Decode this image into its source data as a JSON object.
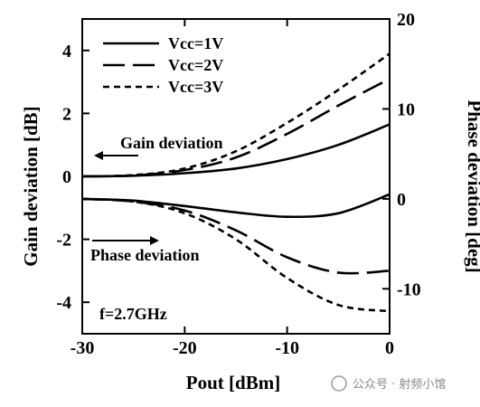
{
  "chart_data": {
    "type": "line",
    "xlabel": "Pout [dBm]",
    "ylabel_left": "Gain deviation [dB]",
    "ylabel_right": "Phase deviation [deg]",
    "xlim": [
      -30,
      0
    ],
    "ylim_left": [
      -5,
      5
    ],
    "ylim_right": [
      -15,
      20
    ],
    "x_ticks": [
      -30,
      -20,
      -10,
      0
    ],
    "y_left_ticks": [
      -4,
      -2,
      0,
      2,
      4
    ],
    "y_right_ticks": [
      -10,
      0,
      10,
      20
    ],
    "legend_position": "top-left",
    "series": [
      {
        "name": "Vcc=1V",
        "axis": "left",
        "group": "gain",
        "dash": "solid",
        "color": "#000000",
        "x": [
          -30,
          -25,
          -20,
          -15,
          -10,
          -5,
          0
        ],
        "y": [
          0.0,
          0.02,
          0.1,
          0.25,
          0.55,
          1.0,
          1.65
        ]
      },
      {
        "name": "Vcc=2V",
        "axis": "left",
        "group": "gain",
        "dash": "long",
        "color": "#000000",
        "x": [
          -30,
          -25,
          -20,
          -15,
          -10,
          -5,
          0
        ],
        "y": [
          0.0,
          0.03,
          0.2,
          0.6,
          1.35,
          2.25,
          3.1
        ]
      },
      {
        "name": "Vcc=3V",
        "axis": "left",
        "group": "gain",
        "dash": "short",
        "color": "#000000",
        "x": [
          -30,
          -25,
          -20,
          -15,
          -10,
          -5,
          0
        ],
        "y": [
          0.0,
          0.04,
          0.25,
          0.8,
          1.7,
          2.75,
          3.9
        ]
      },
      {
        "name": "Vcc=1V",
        "axis": "right",
        "group": "phase",
        "dash": "solid",
        "color": "#000000",
        "x": [
          -30,
          -25,
          -20,
          -15,
          -10,
          -5,
          0
        ],
        "y": [
          0.0,
          -0.2,
          -0.8,
          -1.5,
          -2.0,
          -1.6,
          0.5
        ]
      },
      {
        "name": "Vcc=2V",
        "axis": "right",
        "group": "phase",
        "dash": "long",
        "color": "#000000",
        "x": [
          -30,
          -25,
          -20,
          -15,
          -10,
          -5,
          0
        ],
        "y": [
          0.0,
          -0.3,
          -1.3,
          -3.5,
          -6.5,
          -8.2,
          -8.0
        ]
      },
      {
        "name": "Vcc=3V",
        "axis": "right",
        "group": "phase",
        "dash": "short",
        "color": "#000000",
        "x": [
          -30,
          -25,
          -20,
          -15,
          -10,
          -5,
          0
        ],
        "y": [
          0.0,
          -0.3,
          -1.6,
          -4.5,
          -8.8,
          -11.8,
          -12.5
        ]
      }
    ],
    "annotations": {
      "gain": "Gain deviation",
      "phase": "Phase deviation",
      "freq": "f=2.7GHz"
    }
  },
  "watermark": "公众号 · 射频小馆"
}
